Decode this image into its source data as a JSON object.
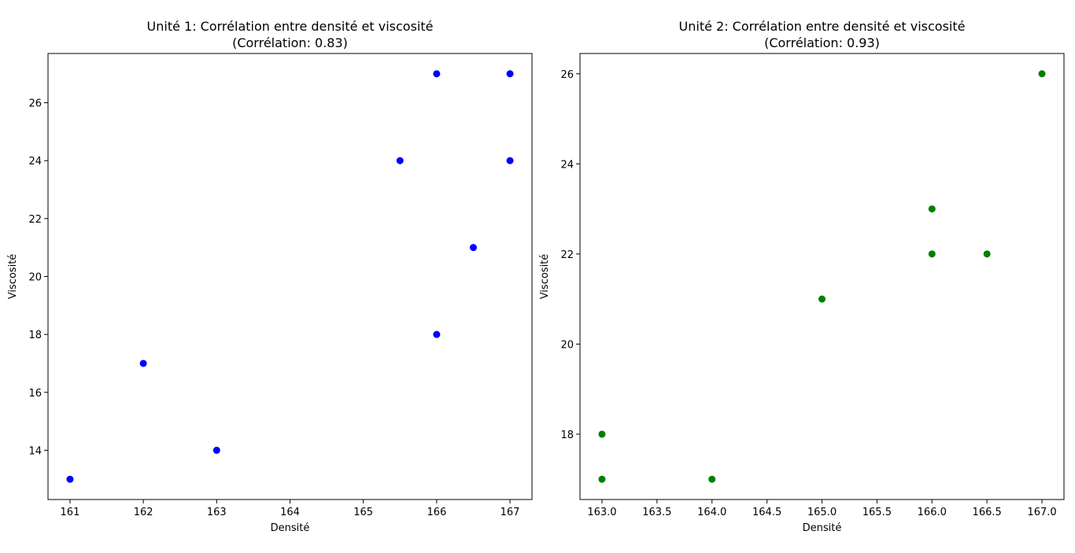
{
  "chart_data": [
    {
      "type": "scatter",
      "title": "Unité 1: Corrélation entre densité et viscosité",
      "subtitle": "(Corrélation: 0.83)",
      "xlabel": "Densité",
      "ylabel": "Viscosité",
      "xlim": [
        160.7,
        167.3
      ],
      "ylim": [
        12.3,
        27.7
      ],
      "xticks": [
        161,
        162,
        163,
        164,
        165,
        166,
        167
      ],
      "xtick_labels": [
        "161",
        "162",
        "163",
        "164",
        "165",
        "166",
        "167"
      ],
      "yticks": [
        14,
        16,
        18,
        20,
        22,
        24,
        26
      ],
      "ytick_labels": [
        "14",
        "16",
        "18",
        "20",
        "22",
        "24",
        "26"
      ],
      "grid": false,
      "color": "#0000ff",
      "x": [
        161,
        162,
        163,
        165.5,
        166,
        166,
        166.5,
        167,
        167
      ],
      "y": [
        13,
        17,
        14,
        24,
        27,
        18,
        21,
        27,
        24
      ]
    },
    {
      "type": "scatter",
      "title": "Unité 2: Corrélation entre densité et viscosité",
      "subtitle": "(Corrélation: 0.93)",
      "xlabel": "Densité",
      "ylabel": "Viscosité",
      "xlim": [
        162.8,
        167.2
      ],
      "ylim": [
        16.55,
        26.45
      ],
      "xticks": [
        163.0,
        163.5,
        164.0,
        164.5,
        165.0,
        165.5,
        166.0,
        166.5,
        167.0
      ],
      "xtick_labels": [
        "163.0",
        "163.5",
        "164.0",
        "164.5",
        "165.0",
        "165.5",
        "166.0",
        "166.5",
        "167.0"
      ],
      "yticks": [
        18,
        20,
        22,
        24,
        26
      ],
      "ytick_labels": [
        "18",
        "20",
        "22",
        "24",
        "26"
      ],
      "grid": false,
      "color": "#008000",
      "x": [
        163,
        163,
        164,
        165,
        166,
        166,
        166.5,
        167
      ],
      "y": [
        18,
        17,
        17,
        21,
        23,
        22,
        22,
        26
      ]
    }
  ]
}
